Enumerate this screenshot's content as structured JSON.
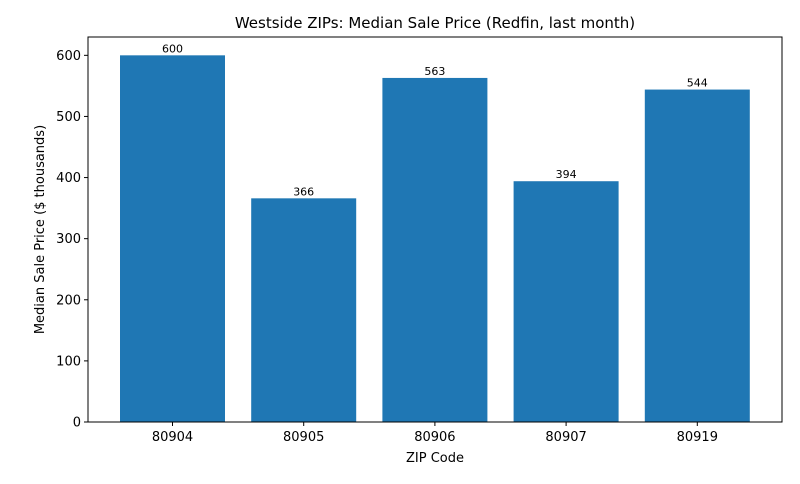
{
  "chart_data": {
    "type": "bar",
    "title": "Westside ZIPs: Median Sale Price (Redfin, last month)",
    "xlabel": "ZIP Code",
    "ylabel": "Median Sale Price ($ thousands)",
    "categories": [
      "80904",
      "80905",
      "80906",
      "80907",
      "80919"
    ],
    "values": [
      600,
      366,
      563,
      394,
      544
    ],
    "data_labels": [
      "600",
      "366",
      "563",
      "394",
      "544"
    ],
    "ylim": [
      0,
      630
    ],
    "yticks": [
      0,
      100,
      200,
      300,
      400,
      500,
      600
    ],
    "grid": false,
    "legend": "none",
    "bar_color": "#1f77b4"
  }
}
